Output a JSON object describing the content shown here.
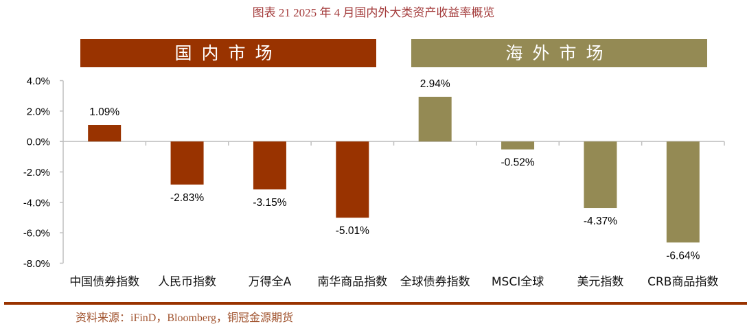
{
  "title": "图表 21  2025 年 4 月国内外大类资产收益率概览",
  "groups": [
    {
      "label": "国内市场",
      "color": "#993300"
    },
    {
      "label": "海外市场",
      "color": "#948A54"
    }
  ],
  "source": "资料来源：iFinD，Bloomberg，铜冠金源期货",
  "colors": {
    "title": "#A33A3A",
    "domestic": "#993300",
    "overseas": "#948A54",
    "separator": "#993300",
    "source_text": "#A0522D",
    "axis": "#BFBFBF"
  },
  "chart_data": {
    "type": "bar",
    "title": "2025 年 4 月国内外大类资产收益率概览",
    "xlabel": "",
    "ylabel": "",
    "ylim": [
      -8.0,
      4.0
    ],
    "yticks": [
      "4.0%",
      "2.0%",
      "0.0%",
      "-2.0%",
      "-4.0%",
      "-6.0%",
      "-8.0%"
    ],
    "grid": false,
    "categories": [
      "中国债券指数",
      "人民币指数",
      "万得全A",
      "南华商品指数",
      "全球债券指数",
      "MSCI全球",
      "美元指数",
      "CRB商品指数"
    ],
    "values": [
      1.09,
      -2.83,
      -3.15,
      -5.01,
      2.94,
      -0.52,
      -4.37,
      -6.64
    ],
    "value_labels": [
      "1.09%",
      "-2.83%",
      "-3.15%",
      "-5.01%",
      "2.94%",
      "-0.52%",
      "-4.37%",
      "-6.64%"
    ],
    "group_of_category": [
      "国内市场",
      "国内市场",
      "国内市场",
      "国内市场",
      "海外市场",
      "海外市场",
      "海外市场",
      "海外市场"
    ],
    "series": [
      {
        "name": "国内市场",
        "categories": [
          "中国债券指数",
          "人民币指数",
          "万得全A",
          "南华商品指数"
        ],
        "values": [
          1.09,
          -2.83,
          -3.15,
          -5.01
        ]
      },
      {
        "name": "海外市场",
        "categories": [
          "全球债券指数",
          "MSCI全球",
          "美元指数",
          "CRB商品指数"
        ],
        "values": [
          2.94,
          -0.52,
          -4.37,
          -6.64
        ]
      }
    ]
  }
}
